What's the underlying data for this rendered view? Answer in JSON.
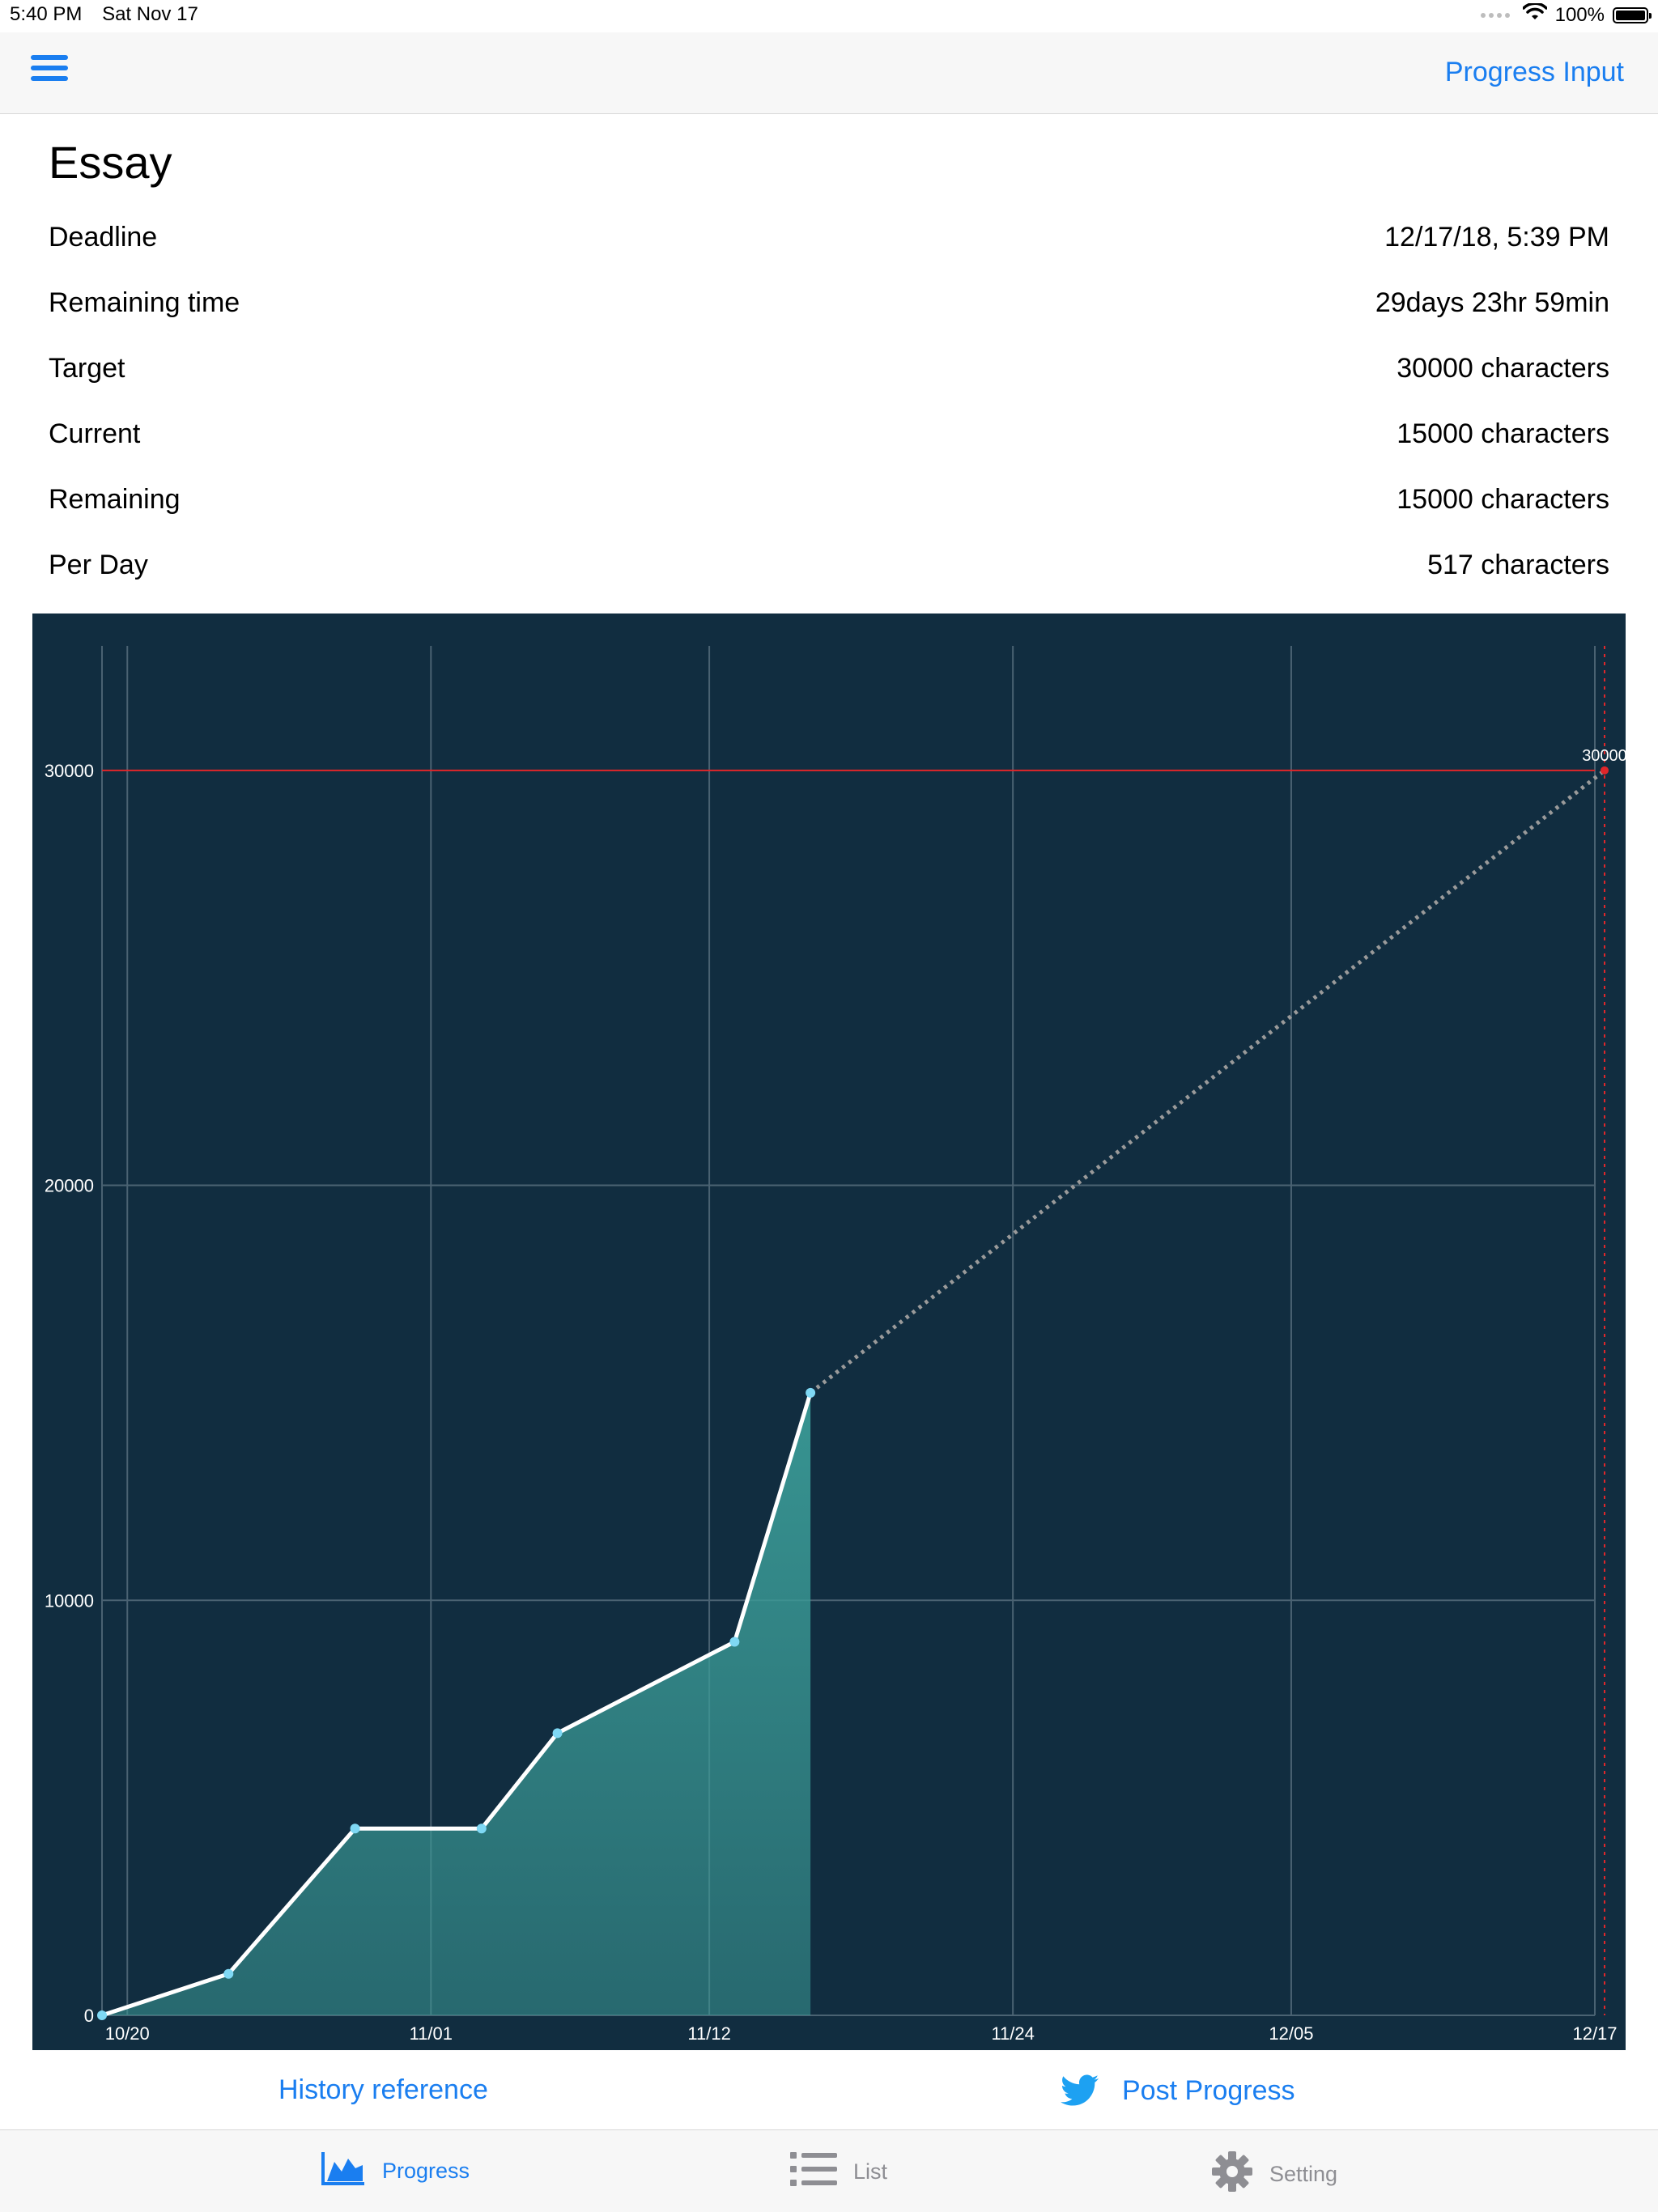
{
  "status_bar": {
    "time": "5:40 PM",
    "date": "Sat Nov 17",
    "battery": "100%",
    "battery_level": 1.0
  },
  "nav": {
    "right_label": "Progress Input"
  },
  "info": {
    "title": "Essay",
    "rows": [
      {
        "label": "Deadline",
        "value": "12/17/18, 5:39 PM"
      },
      {
        "label": "Remaining time",
        "value": "29days 23hr 59min"
      },
      {
        "label": "Target",
        "value": "30000 characters"
      },
      {
        "label": "Current",
        "value": "15000 characters"
      },
      {
        "label": "Remaining",
        "value": "15000 characters"
      },
      {
        "label": "Per Day",
        "value": "517 characters"
      }
    ]
  },
  "chart_data": {
    "type": "area",
    "x_ticks": [
      "10/20",
      "11/01",
      "11/12",
      "11/24",
      "12/05",
      "12/17"
    ],
    "y_ticks": [
      "0",
      "10000",
      "20000",
      "30000"
    ],
    "ylim": [
      0,
      33000
    ],
    "target_value": 30000,
    "target_label": "30000",
    "progress": [
      {
        "date": "10/19",
        "value": 0
      },
      {
        "date": "10/24",
        "value": 1000
      },
      {
        "date": "10/29",
        "value": 4500
      },
      {
        "date": "11/03",
        "value": 4500
      },
      {
        "date": "11/06",
        "value": 6800
      },
      {
        "date": "11/13",
        "value": 9000
      },
      {
        "date": "11/16",
        "value": 15000
      }
    ],
    "projection": [
      {
        "date": "11/16",
        "value": 15000
      },
      {
        "date": "12/17",
        "value": 30000
      }
    ],
    "colors": {
      "background": "#112d40",
      "line": "#ffffff",
      "fill": "#3a9a96",
      "point": "#7fd8f4",
      "target": "#e0262a",
      "projection": "#9a9a9a",
      "grid": "#4a6272"
    }
  },
  "actions": {
    "history": "History reference",
    "post": "Post Progress"
  },
  "tabs": {
    "progress": "Progress",
    "list": "List",
    "setting": "Setting"
  }
}
